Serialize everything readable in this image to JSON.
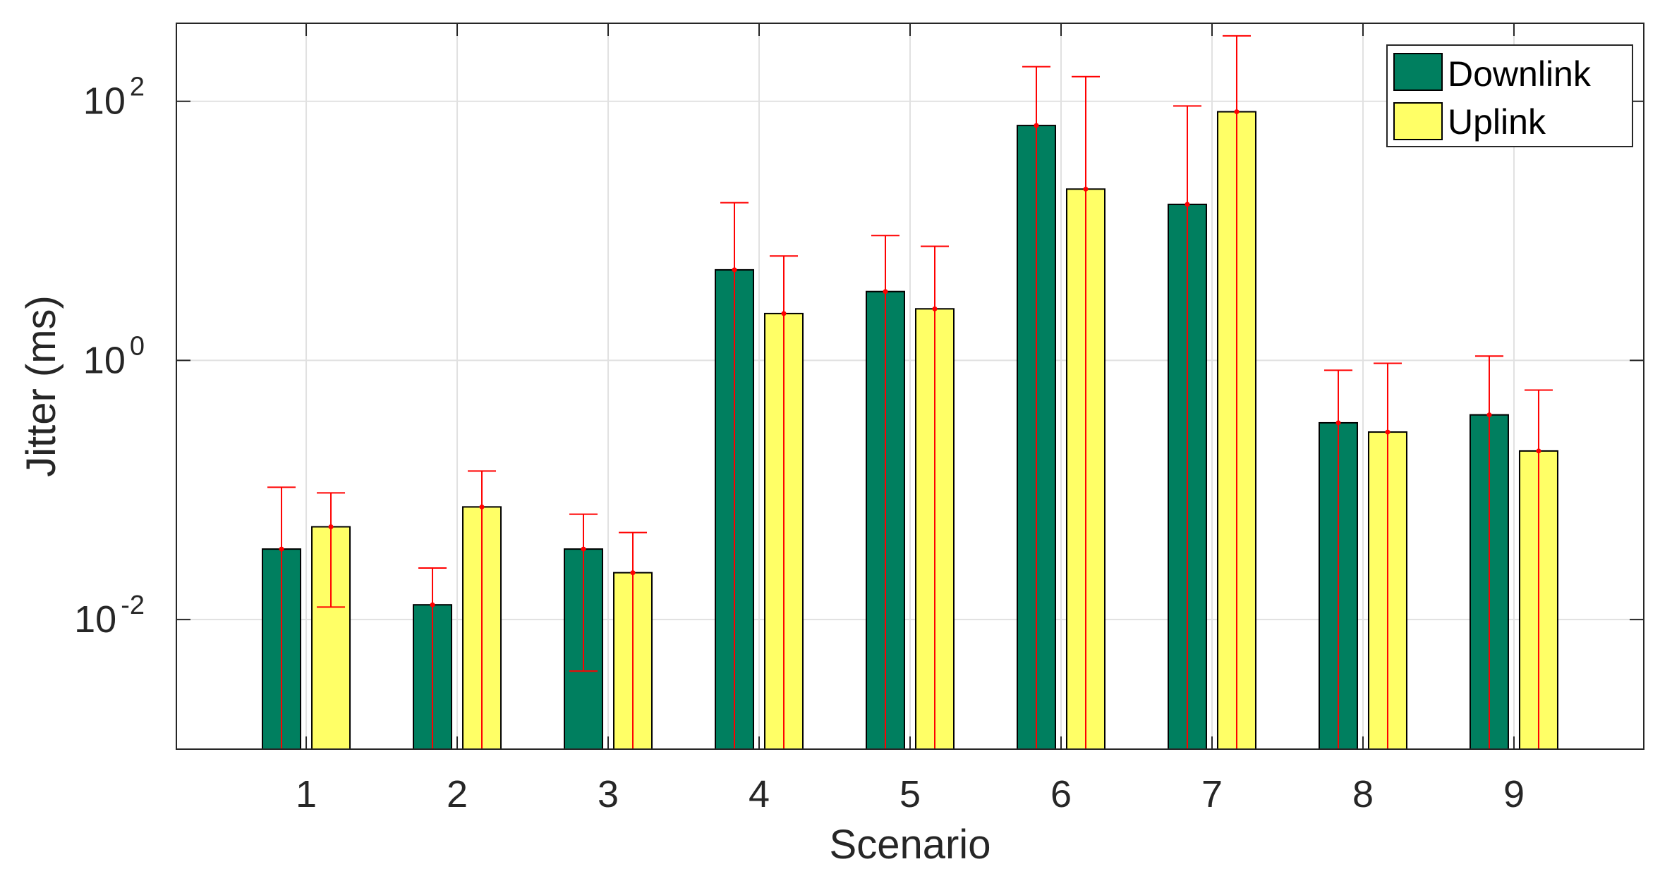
{
  "chart_data": {
    "type": "bar",
    "yscale": "log",
    "xlabel": "Scenario",
    "ylabel": "Jitter (ms)",
    "ylim": [
      0.001,
      400
    ],
    "categories": [
      "1",
      "2",
      "3",
      "4",
      "5",
      "6",
      "7",
      "8",
      "9"
    ],
    "yticks": [
      {
        "value": 0.01,
        "base": "10",
        "exp": "-2"
      },
      {
        "value": 1,
        "base": "10",
        "exp": "0"
      },
      {
        "value": 100,
        "base": "10",
        "exp": "2"
      }
    ],
    "grid": true,
    "legend_position": "top-right",
    "series": [
      {
        "name": "Downlink",
        "color": "#007f5f",
        "values": [
          0.035,
          0.013,
          0.035,
          5.0,
          3.4,
          65,
          16,
          0.33,
          0.38
        ],
        "err_low": [
          0.001,
          0.001,
          0.004,
          0.001,
          0.001,
          0.001,
          0.001,
          0.001,
          0.001
        ],
        "err_high": [
          0.105,
          0.025,
          0.065,
          16.5,
          9.2,
          185,
          92,
          0.84,
          1.08
        ]
      },
      {
        "name": "Uplink",
        "color": "#ffff66",
        "values": [
          0.052,
          0.074,
          0.023,
          2.3,
          2.5,
          21,
          83,
          0.28,
          0.2
        ],
        "err_low": [
          0.0125,
          0.001,
          0.001,
          0.001,
          0.001,
          0.001,
          0.001,
          0.001,
          0.001
        ],
        "err_high": [
          0.095,
          0.14,
          0.047,
          6.4,
          7.6,
          155,
          320,
          0.95,
          0.59
        ]
      }
    ],
    "error_bar_color": "#ff0000"
  }
}
